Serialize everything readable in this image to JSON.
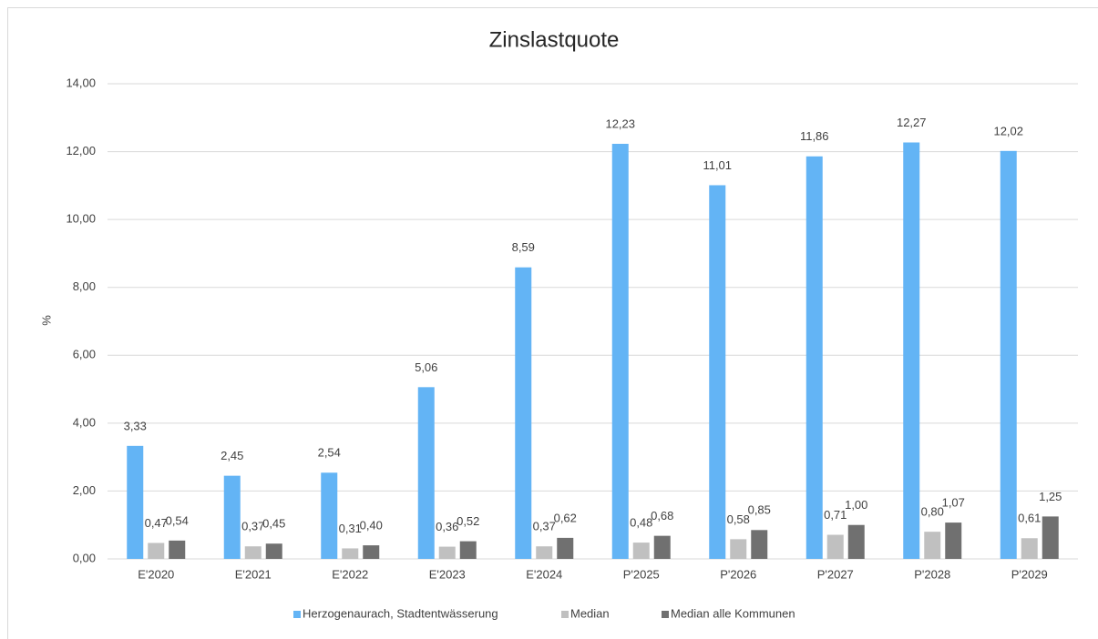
{
  "chart_data": {
    "type": "bar",
    "title": "Zinslastquote",
    "y_label": "%",
    "categories": [
      "E'2020",
      "E'2021",
      "E'2022",
      "E'2023",
      "E'2024",
      "P'2025",
      "P'2026",
      "P'2027",
      "P'2028",
      "P'2029"
    ],
    "series": [
      {
        "name": "Herzogenaurach, Stadtentwässerung",
        "color": "#63b4f5",
        "values": [
          3.33,
          2.45,
          2.54,
          5.06,
          8.59,
          12.23,
          11.01,
          11.86,
          12.27,
          12.02
        ],
        "value_labels": [
          "3,33",
          "2,45",
          "2,54",
          "5,06",
          "8,59",
          "12,23",
          "11,01",
          "11,86",
          "12,27",
          "12,02"
        ]
      },
      {
        "name": "Median",
        "color": "#c0c0c0",
        "values": [
          0.47,
          0.37,
          0.31,
          0.36,
          0.37,
          0.48,
          0.58,
          0.71,
          0.8,
          0.61
        ],
        "value_labels": [
          "0,47",
          "0,37",
          "0,31",
          "0,36",
          "0,37",
          "0,48",
          "0,58",
          "0,71",
          "0,80",
          "0,61"
        ]
      },
      {
        "name": "Median alle Kommunen",
        "color": "#707070",
        "values": [
          0.54,
          0.45,
          0.4,
          0.52,
          0.62,
          0.68,
          0.85,
          1.0,
          1.07,
          1.25
        ],
        "value_labels": [
          "0,54",
          "0,45",
          "0,40",
          "0,52",
          "0,62",
          "0,68",
          "0,85",
          "1,00",
          "1,07",
          "1,25"
        ]
      }
    ],
    "ylim": [
      0,
      14
    ],
    "yticks": [
      {
        "value": 0,
        "label": "0,00"
      },
      {
        "value": 2,
        "label": "2,00"
      },
      {
        "value": 4,
        "label": "4,00"
      },
      {
        "value": 6,
        "label": "6,00"
      },
      {
        "value": 8,
        "label": "8,00"
      },
      {
        "value": 10,
        "label": "10,00"
      },
      {
        "value": 12,
        "label": "12,00"
      },
      {
        "value": 14,
        "label": "14,00"
      }
    ],
    "grid": true,
    "legend": "bottom"
  }
}
